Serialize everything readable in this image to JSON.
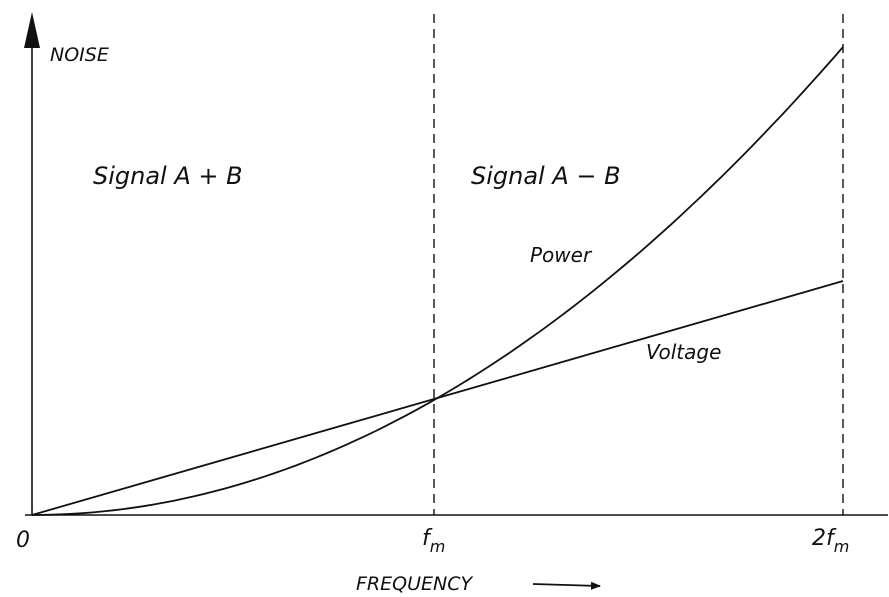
{
  "chart_data": {
    "type": "line",
    "ylabel": "NOISE",
    "xlabel": "FREQUENCY",
    "x_ticks": [
      {
        "x": 0,
        "label": "0",
        "sub": ""
      },
      {
        "x": 1,
        "label": "f",
        "sub": "m"
      },
      {
        "x": 2,
        "label": "2f",
        "sub": "m"
      }
    ],
    "xlim": [
      0,
      2
    ],
    "ylim": [
      0,
      3.6
    ],
    "grid": false,
    "region_labels": [
      "Signal A + B",
      "Signal A − B"
    ],
    "series": [
      {
        "name": "Voltage",
        "x": [
          0,
          0.25,
          0.5,
          0.75,
          1,
          1.25,
          1.5,
          1.75,
          2
        ],
        "y": [
          0,
          0.25,
          0.5,
          0.75,
          1,
          1.25,
          1.5,
          1.75,
          2
        ]
      },
      {
        "name": "Power",
        "x": [
          0,
          0.25,
          0.5,
          0.75,
          1,
          1.25,
          1.5,
          1.75,
          2
        ],
        "y": [
          0,
          0.0625,
          0.25,
          0.5625,
          1,
          1.5625,
          2.25,
          3.0625,
          4
        ]
      }
    ]
  }
}
